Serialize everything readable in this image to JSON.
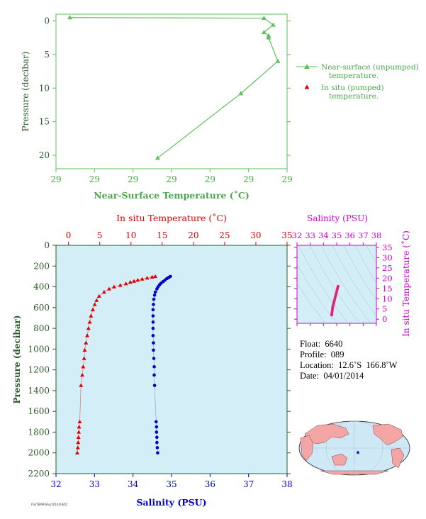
{
  "chart_data": [
    {
      "type": "line",
      "id": "near_surface",
      "xlabel": "Near-Surface Temperature (˚C)",
      "ylabel": "Pressure (decibar)",
      "x_tick_labels": [
        "29",
        "29",
        "29",
        "29",
        "29",
        "29",
        "29"
      ],
      "y_ticks": [
        0,
        5,
        10,
        15,
        20
      ],
      "ylim": [
        22,
        -1
      ],
      "color": "#5cbf5c",
      "series": [
        {
          "name": "Near-surface (unpumped) temperature.",
          "x": [
            28.933,
            28.975,
            28.977,
            28.975,
            28.976,
            28.976,
            28.978,
            28.97,
            28.952
          ],
          "y": [
            -0.5,
            -0.4,
            0.6,
            1.7,
            2.2,
            2.5,
            6.0,
            10.8,
            20.4
          ]
        },
        {
          "name": "In situ (pumped) temperature.",
          "x": [],
          "y": []
        }
      ],
      "xlim": [
        28.93,
        28.98
      ]
    },
    {
      "type": "scatter",
      "id": "profile",
      "top_xlabel": "In situ Temperature (˚C)",
      "bottom_xlabel": "Salinity (PSU)",
      "ylabel": "Pressure (decibar)",
      "temp_ticks": [
        0,
        5,
        10,
        15,
        20,
        25,
        30,
        35
      ],
      "sal_ticks": [
        32,
        33,
        34,
        35,
        36,
        37,
        38
      ],
      "y_ticks": [
        0,
        200,
        400,
        600,
        800,
        1000,
        1200,
        1400,
        1600,
        1800,
        2000,
        2200
      ],
      "temp_xlim": [
        -2,
        35
      ],
      "sal_xlim": [
        32,
        38
      ],
      "ylim": [
        2200,
        0
      ],
      "temperature": {
        "color": "#dd0000",
        "pressure": [
          300,
          305,
          315,
          325,
          335,
          345,
          355,
          370,
          385,
          400,
          420,
          450,
          490,
          530,
          570,
          620,
          680,
          740,
          800,
          870,
          940,
          1010,
          1090,
          1170,
          1250,
          1350,
          1700,
          1750,
          1800,
          1850,
          1900,
          1950,
          2000
        ],
        "value": [
          13.9,
          13.4,
          12.6,
          11.8,
          11.1,
          10.5,
          9.9,
          9.2,
          8.3,
          7.3,
          6.5,
          5.7,
          4.9,
          4.5,
          4.2,
          3.9,
          3.6,
          3.4,
          3.2,
          3.0,
          2.8,
          2.6,
          2.5,
          2.35,
          2.2,
          2.0,
          1.8,
          1.7,
          1.65,
          1.6,
          1.55,
          1.5,
          1.4
        ]
      },
      "salinity": {
        "color": "#0000cc",
        "pressure": [
          300,
          310,
          320,
          335,
          350,
          365,
          380,
          400,
          420,
          450,
          480,
          520,
          570,
          620,
          680,
          740,
          800,
          870,
          940,
          1010,
          1090,
          1170,
          1250,
          1350,
          1700,
          1750,
          1800,
          1850,
          1900,
          1950,
          2000
        ],
        "value": [
          34.97,
          34.93,
          34.88,
          34.83,
          34.78,
          34.73,
          34.69,
          34.65,
          34.62,
          34.58,
          34.56,
          34.54,
          34.53,
          34.52,
          34.52,
          34.52,
          34.52,
          34.52,
          34.53,
          34.53,
          34.54,
          34.55,
          34.55,
          34.56,
          34.6,
          34.61,
          34.61,
          34.62,
          34.62,
          34.63,
          34.64
        ]
      }
    },
    {
      "type": "scatter",
      "id": "ts_diagram",
      "xlabel": "Salinity (PSU)",
      "ylabel": "In situ Temperature (˚C)",
      "x_ticks": [
        32,
        33,
        34,
        35,
        36,
        37,
        38
      ],
      "y_ticks": [
        0,
        5,
        10,
        15,
        20,
        25,
        30,
        35
      ],
      "xlim": [
        32,
        38
      ],
      "ylim": [
        -2,
        36
      ],
      "color": "#e0207a",
      "salinity": [
        35.1,
        35.06,
        35.02,
        34.98,
        34.94,
        34.9,
        34.86,
        34.82,
        34.78,
        34.74,
        34.7,
        34.68,
        34.66,
        34.64,
        34.62
      ],
      "temperature": [
        16.0,
        15.0,
        14.0,
        13.0,
        12.0,
        11.0,
        10.0,
        9.0,
        8.0,
        7.0,
        6.0,
        5.0,
        4.0,
        3.0,
        2.0
      ]
    }
  ],
  "legend": {
    "near_surface": "Near-surface (unpumped)",
    "near_surface_2": "temperature.",
    "in_situ": "In situ (pumped)",
    "in_situ_2": "temperature."
  },
  "info": {
    "float": "Float:  6640",
    "profile": "Profile:  089",
    "location": "Location:  12.6˚S  166.8˚W",
    "date": "Date:  04/01/2014"
  },
  "footer_tag": "FSI/TEMP/SAL/2014/04/01",
  "colors": {
    "green": "#5cbf5c",
    "red": "#dd0000",
    "blue": "#0000cc",
    "magenta": "#cc00cc",
    "plot_bg": "#d4eef7",
    "axis_text": "#2a5a2a"
  }
}
